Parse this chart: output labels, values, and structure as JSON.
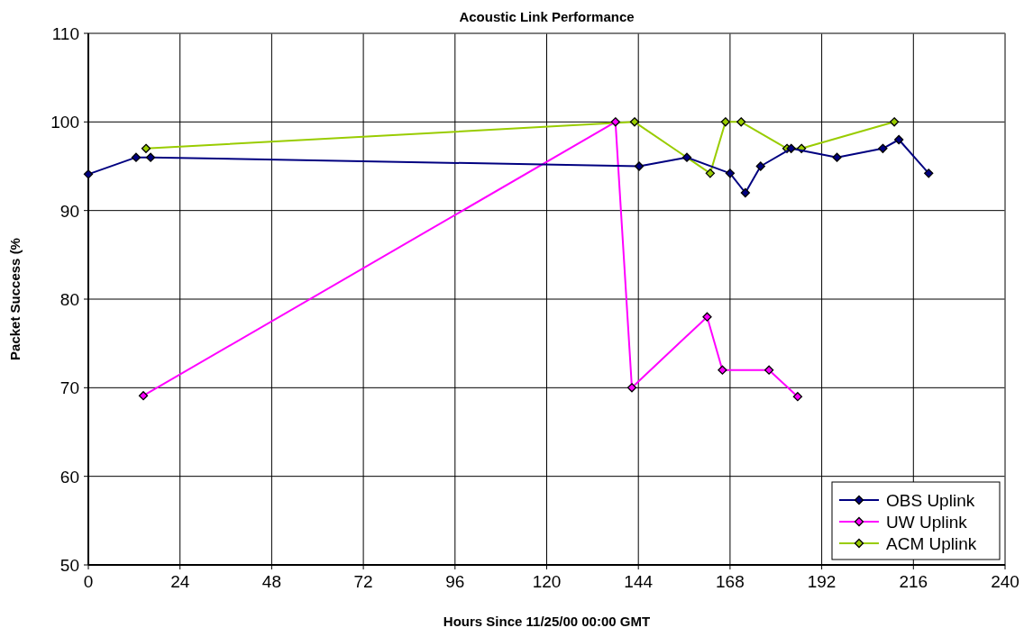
{
  "chart_data": {
    "type": "line",
    "title": "Acoustic Link Performance",
    "xlabel": "Hours Since 11/25/00 00:00 GMT",
    "ylabel": "Packet Success (%",
    "xlim": [
      0,
      240
    ],
    "xticks": [
      0,
      24,
      48,
      72,
      96,
      120,
      144,
      168,
      192,
      216,
      240
    ],
    "ylim": [
      50,
      110
    ],
    "yticks": [
      50,
      60,
      70,
      80,
      90,
      100,
      110
    ],
    "grid": true,
    "legend": "bottom right",
    "marker": "diamond",
    "line_style": "solid",
    "series": [
      {
        "name": "OBS Uplink",
        "color": "#000080",
        "x": [
          0,
          12.5,
          16.3,
          144.2,
          156.7,
          168,
          172,
          176,
          184,
          196,
          208,
          212.2,
          220
        ],
        "values": [
          94.1,
          96,
          96,
          95,
          96,
          94.2,
          92,
          95,
          97,
          96,
          97,
          98,
          94.2
        ]
      },
      {
        "name": "UW Uplink",
        "color": "#ff00ff",
        "x": [
          14.4,
          138,
          142.3,
          162,
          166,
          178.2,
          185.7
        ],
        "values": [
          69.1,
          100,
          70,
          78,
          72,
          72,
          69
        ]
      },
      {
        "name": "ACM Uplink",
        "color": "#99cc00",
        "x": [
          15.1,
          143,
          162.8,
          166.8,
          170.9,
          182.9,
          186.7,
          211
        ],
        "values": [
          97,
          100,
          94.2,
          100,
          100,
          97,
          97,
          100
        ]
      }
    ]
  }
}
